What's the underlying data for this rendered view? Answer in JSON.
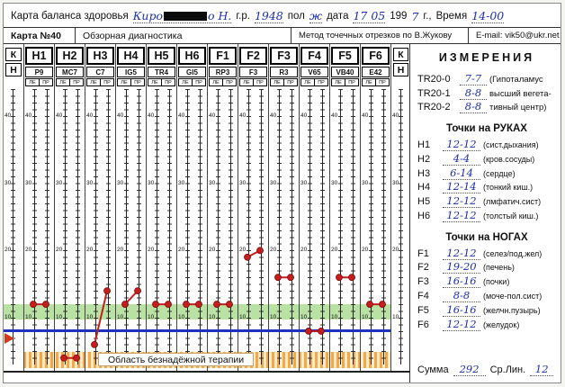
{
  "header": {
    "title": "Карта баланса здоровья",
    "name_part1": "Киро",
    "name_part2": "о Н.",
    "birth_label": "г.р.",
    "birth_value": "1948",
    "sex_label": "пол",
    "sex_value": "ж",
    "date_label": "дата",
    "date_value": "17 05",
    "year_printed": "199",
    "year_hand": "7",
    "year_suffix": "г.,",
    "time_label": "Время",
    "time_value": "14-00"
  },
  "subheader": {
    "card_no": "Карта №40",
    "mode": "Обзорная диагностика",
    "method": "Метод точечных отрезков по В.Жукову",
    "email": "E-mail: vik50@ukr.net"
  },
  "chart_data": {
    "type": "scatter",
    "corner_labels": [
      "К",
      "Н"
    ],
    "side_labels": [
      "ЛЕ",
      "ПР"
    ],
    "scale_ticks": [
      40,
      30,
      20,
      10
    ],
    "ylim": [
      0,
      45
    ],
    "green_zone": [
      10,
      12
    ],
    "blue_line_level": 8,
    "hopeless_zone_max": 5,
    "hopeless_zone_label": "Область безнадёжной терапии",
    "columns": [
      {
        "meridian": "H1",
        "point": "P9",
        "left": 12,
        "right": 12
      },
      {
        "meridian": "H2",
        "point": "MC7",
        "left": 4,
        "right": 4
      },
      {
        "meridian": "H3",
        "point": "C7",
        "left": 6,
        "right": 14
      },
      {
        "meridian": "H4",
        "point": "IG5",
        "left": 12,
        "right": 14
      },
      {
        "meridian": "H5",
        "point": "TR4",
        "left": 12,
        "right": 12
      },
      {
        "meridian": "H6",
        "point": "GI5",
        "left": 12,
        "right": 12
      },
      {
        "meridian": "F1",
        "point": "RP3",
        "left": 12,
        "right": 12
      },
      {
        "meridian": "F2",
        "point": "F3",
        "left": 19,
        "right": 20
      },
      {
        "meridian": "F3",
        "point": "R3",
        "left": 16,
        "right": 16
      },
      {
        "meridian": "F4",
        "point": "V65",
        "left": 8,
        "right": 8
      },
      {
        "meridian": "F5",
        "point": "VB40",
        "left": 16,
        "right": 16
      },
      {
        "meridian": "F6",
        "point": "E42",
        "left": 12,
        "right": 12
      }
    ]
  },
  "measurements": {
    "title": "ИЗМЕРЕНИЯ",
    "tr": [
      {
        "label": "TR20-0",
        "value": "7-7",
        "note": "(Гипоталамус"
      },
      {
        "label": "TR20-1",
        "value": "8-8",
        "note": "высший вегета-"
      },
      {
        "label": "TR20-2",
        "value": "8-8",
        "note": "тивный центр)"
      }
    ],
    "hands_title": "Точки на РУКАХ",
    "hands": [
      {
        "label": "H1",
        "value": "12-12",
        "note": "(сист.дыхания)"
      },
      {
        "label": "H2",
        "value": "4-4",
        "note": "(кров.сосуды)"
      },
      {
        "label": "H3",
        "value": "6-14",
        "note": "(сердце)"
      },
      {
        "label": "H4",
        "value": "12-14",
        "note": "(тонкий киш.)"
      },
      {
        "label": "H5",
        "value": "12-12",
        "note": "(лмфатич.сист)"
      },
      {
        "label": "H6",
        "value": "12-12",
        "note": "(толстый киш.)"
      }
    ],
    "feet_title": "Точки на НОГАХ",
    "feet": [
      {
        "label": "F1",
        "value": "12-12",
        "note": "(селез/под.жел)"
      },
      {
        "label": "F2",
        "value": "19-20",
        "note": "(печень)"
      },
      {
        "label": "F3",
        "value": "16-16",
        "note": "(почки)"
      },
      {
        "label": "F4",
        "value": "8-8",
        "note": "(моче-пол.сист)"
      },
      {
        "label": "F5",
        "value": "16-16",
        "note": "(желчн.пузырь)"
      },
      {
        "label": "F6",
        "value": "12-12",
        "note": "(желудок)"
      }
    ],
    "sum_label": "Сумма",
    "sum_value": "292",
    "avg_label": "Ср.Лин.",
    "avg_value": "12"
  },
  "colors": {
    "hand_ink": "#1c2fae",
    "dot_red": "#c41e1e",
    "normal_zone_green": "#80c85a",
    "threshold_blue": "#1d33bd",
    "hopeless_zone_orange": "#f29e34"
  }
}
